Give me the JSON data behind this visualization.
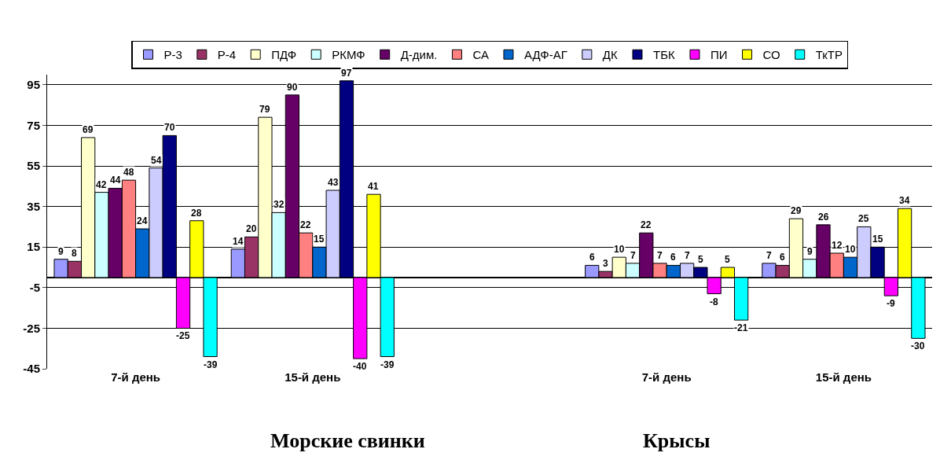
{
  "chart_data": {
    "type": "bar",
    "categories": [
      "7-й день",
      "15-й день",
      null,
      "7-й день",
      "15-й день"
    ],
    "series": [
      {
        "name": "Р-3",
        "color": "#9999ff",
        "values": [
          9,
          14,
          null,
          6,
          7
        ]
      },
      {
        "name": "Р-4",
        "color": "#993366",
        "values": [
          8,
          20,
          null,
          3,
          6
        ]
      },
      {
        "name": "ПДФ",
        "color": "#ffffcc",
        "values": [
          69,
          79,
          null,
          10,
          29
        ]
      },
      {
        "name": "РКМФ",
        "color": "#ccffff",
        "values": [
          42,
          32,
          null,
          7,
          9
        ]
      },
      {
        "name": "Д-дим.",
        "color": "#660066",
        "values": [
          44,
          90,
          null,
          22,
          26
        ]
      },
      {
        "name": "СА",
        "color": "#ff8080",
        "values": [
          48,
          22,
          null,
          7,
          12
        ]
      },
      {
        "name": "АДФ-АГ",
        "color": "#0066cc",
        "values": [
          24,
          15,
          null,
          6,
          10
        ]
      },
      {
        "name": "ДК",
        "color": "#ccccff",
        "values": [
          54,
          43,
          null,
          7,
          25
        ]
      },
      {
        "name": "ТБК",
        "color": "#000080",
        "values": [
          70,
          97,
          null,
          5,
          15
        ]
      },
      {
        "name": "ПИ",
        "color": "#ff00ff",
        "values": [
          -25,
          -40,
          null,
          -8,
          -9
        ]
      },
      {
        "name": "СО",
        "color": "#ffff00",
        "values": [
          28,
          41,
          null,
          5,
          34
        ]
      },
      {
        "name": "ТкТР",
        "color": "#00ffff",
        "values": [
          -39,
          -39,
          null,
          -21,
          -30
        ]
      }
    ],
    "ylim": [
      -45,
      100
    ],
    "yticks": [
      -45,
      -25,
      -5,
      15,
      35,
      55,
      75,
      95
    ],
    "grid": "y",
    "legend": "top",
    "data_labels": true,
    "annotations": [
      "Морские свинки",
      "Крысы"
    ]
  }
}
